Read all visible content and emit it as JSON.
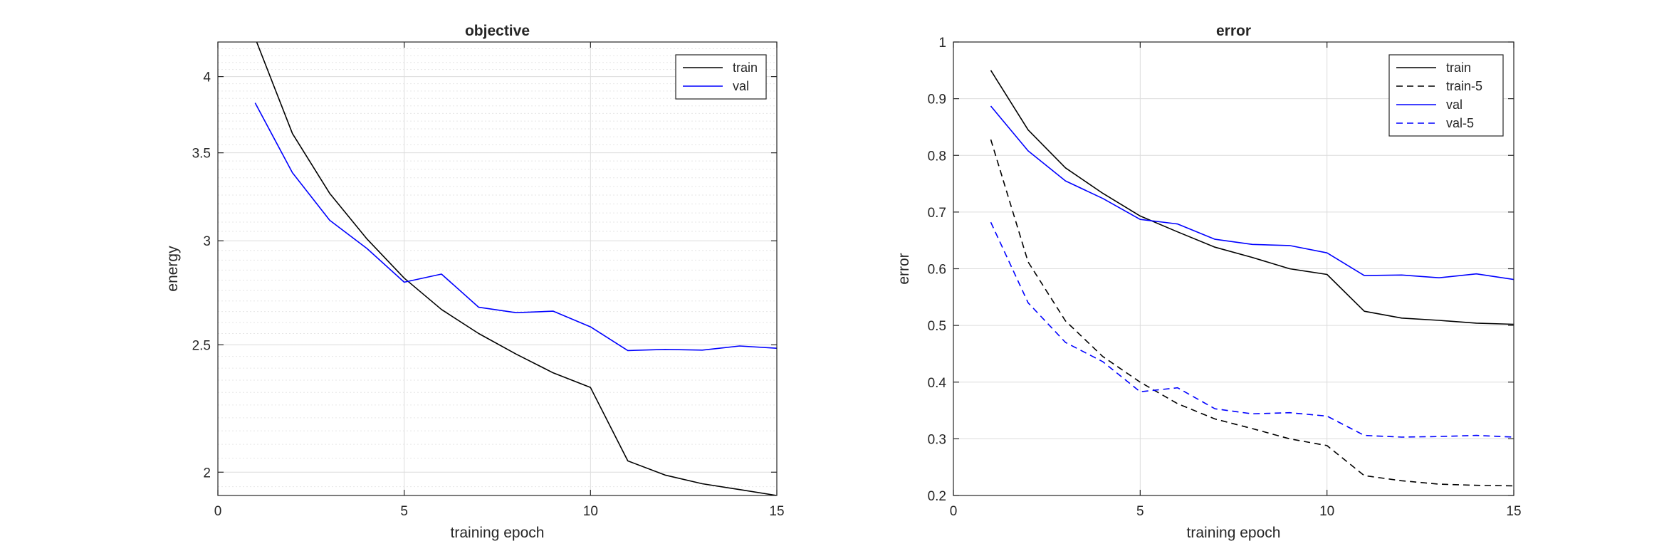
{
  "chart_data": [
    {
      "type": "line",
      "title": "objective",
      "xlabel": "training epoch",
      "ylabel": "energy",
      "xlim": [
        0,
        15
      ],
      "ylim": [
        1.92,
        4.25
      ],
      "yscale": "log",
      "grid": true,
      "minor_grid": true,
      "legend": "top-right",
      "xticks": [
        0,
        5,
        10,
        15
      ],
      "xtick_labels": [
        "0",
        "5",
        "10",
        "15"
      ],
      "yticks": [
        2,
        2.5,
        3,
        3.5,
        4
      ],
      "ytick_labels": [
        "2",
        "2.5",
        "3",
        "3.5",
        "4"
      ],
      "series": [
        {
          "name": "train",
          "color": "#000000",
          "dash": "solid",
          "x": [
            1,
            2,
            3,
            4,
            5,
            6,
            7,
            8,
            9,
            10,
            11,
            12,
            13,
            14,
            15
          ],
          "values": [
            4.28,
            3.62,
            3.26,
            3.01,
            2.81,
            2.66,
            2.55,
            2.46,
            2.38,
            2.32,
            2.04,
            1.99,
            1.96,
            1.94,
            1.92
          ]
        },
        {
          "name": "val",
          "color": "#0000ff",
          "dash": "solid",
          "x": [
            1,
            2,
            3,
            4,
            5,
            6,
            7,
            8,
            9,
            10,
            11,
            12,
            13,
            14,
            15
          ],
          "values": [
            3.82,
            3.38,
            3.11,
            2.96,
            2.79,
            2.83,
            2.67,
            2.645,
            2.652,
            2.58,
            2.475,
            2.48,
            2.477,
            2.495,
            2.485
          ]
        }
      ]
    },
    {
      "type": "line",
      "title": "error",
      "xlabel": "training epoch",
      "ylabel": "error",
      "xlim": [
        0,
        15
      ],
      "ylim": [
        0.2,
        1
      ],
      "yscale": "linear",
      "grid": true,
      "minor_grid": false,
      "legend": "top-right",
      "xticks": [
        0,
        5,
        10,
        15
      ],
      "xtick_labels": [
        "0",
        "5",
        "10",
        "15"
      ],
      "yticks": [
        0.2,
        0.3,
        0.4,
        0.5,
        0.6,
        0.7,
        0.8,
        0.9,
        1
      ],
      "ytick_labels": [
        "0.2",
        "0.3",
        "0.4",
        "0.5",
        "0.6",
        "0.7",
        "0.8",
        "0.9",
        "1"
      ],
      "series": [
        {
          "name": "train",
          "color": "#000000",
          "dash": "solid",
          "x": [
            1,
            2,
            3,
            4,
            5,
            6,
            7,
            8,
            9,
            10,
            11,
            12,
            13,
            14,
            15
          ],
          "values": [
            0.95,
            0.845,
            0.778,
            0.733,
            0.693,
            0.665,
            0.638,
            0.62,
            0.6,
            0.59,
            0.525,
            0.513,
            0.509,
            0.504,
            0.502
          ]
        },
        {
          "name": "train-5",
          "color": "#000000",
          "dash": "dashed",
          "x": [
            1,
            2,
            3,
            4,
            5,
            6,
            7,
            8,
            9,
            10,
            11,
            12,
            13,
            14,
            15
          ],
          "values": [
            0.828,
            0.612,
            0.508,
            0.445,
            0.4,
            0.362,
            0.335,
            0.318,
            0.3,
            0.288,
            0.235,
            0.226,
            0.22,
            0.218,
            0.217
          ]
        },
        {
          "name": "val",
          "color": "#0000ff",
          "dash": "solid",
          "x": [
            1,
            2,
            3,
            4,
            5,
            6,
            7,
            8,
            9,
            10,
            11,
            12,
            13,
            14,
            15
          ],
          "values": [
            0.887,
            0.808,
            0.755,
            0.724,
            0.687,
            0.679,
            0.652,
            0.643,
            0.641,
            0.628,
            0.588,
            0.589,
            0.584,
            0.591,
            0.581
          ]
        },
        {
          "name": "val-5",
          "color": "#0000ff",
          "dash": "dashed",
          "x": [
            1,
            2,
            3,
            4,
            5,
            6,
            7,
            8,
            9,
            10,
            11,
            12,
            13,
            14,
            15
          ],
          "values": [
            0.682,
            0.54,
            0.47,
            0.436,
            0.383,
            0.39,
            0.353,
            0.344,
            0.346,
            0.34,
            0.306,
            0.303,
            0.304,
            0.306,
            0.303
          ]
        }
      ]
    }
  ]
}
